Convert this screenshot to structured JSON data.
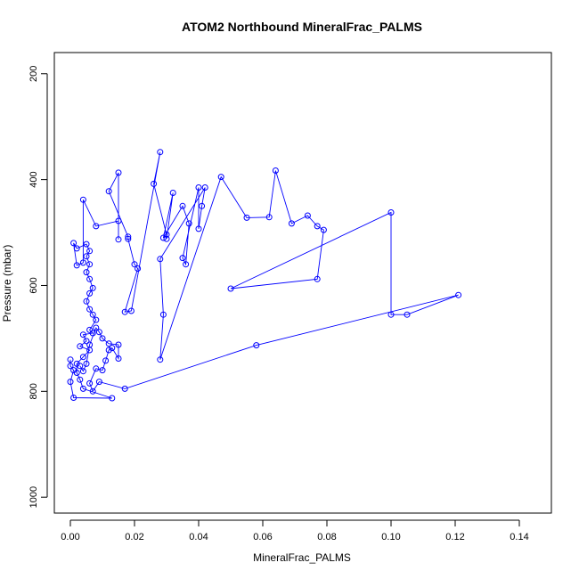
{
  "chart_data": {
    "type": "scatter",
    "title": "ATOM2 Northbound MineralFrac_PALMS",
    "xlabel": "MineralFrac_PALMS",
    "ylabel": "Pressure (mbar)",
    "xlim": [
      -0.005,
      0.15
    ],
    "ylim": [
      160,
      1030
    ],
    "y_reversed": true,
    "xticks": [
      "0.00",
      "0.02",
      "0.04",
      "0.06",
      "0.08",
      "0.10",
      "0.12",
      "0.14"
    ],
    "yticks": [
      "200",
      "400",
      "600",
      "800",
      "1000"
    ],
    "grid": false,
    "series": [
      {
        "color": "#0000ff",
        "marker": "open-circle",
        "connected": true,
        "points": [
          [
            0.0,
            740
          ],
          [
            0.0,
            752
          ],
          [
            0.001,
            760
          ],
          [
            0.0,
            782
          ],
          [
            0.001,
            812
          ],
          [
            0.013,
            813
          ],
          [
            0.004,
            795
          ],
          [
            0.003,
            778
          ],
          [
            0.002,
            765
          ],
          [
            0.002,
            748
          ],
          [
            0.004,
            735
          ],
          [
            0.006,
            722
          ],
          [
            0.003,
            715
          ],
          [
            0.005,
            705
          ],
          [
            0.004,
            693
          ],
          [
            0.007,
            690
          ],
          [
            0.006,
            684
          ],
          [
            0.008,
            665
          ],
          [
            0.007,
            655
          ],
          [
            0.006,
            645
          ],
          [
            0.005,
            630
          ],
          [
            0.006,
            615
          ],
          [
            0.007,
            605
          ],
          [
            0.006,
            588
          ],
          [
            0.005,
            575
          ],
          [
            0.006,
            560
          ],
          [
            0.005,
            545
          ],
          [
            0.006,
            535
          ],
          [
            0.005,
            522
          ],
          [
            0.002,
            530
          ],
          [
            0.001,
            520
          ],
          [
            0.002,
            562
          ],
          [
            0.004,
            557
          ],
          [
            0.004,
            438
          ],
          [
            0.008,
            488
          ],
          [
            0.015,
            478
          ],
          [
            0.015,
            513
          ],
          [
            0.015,
            387
          ],
          [
            0.012,
            422
          ],
          [
            0.018,
            508
          ],
          [
            0.018,
            512
          ],
          [
            0.02,
            560
          ],
          [
            0.021,
            568
          ],
          [
            0.017,
            650
          ],
          [
            0.019,
            648
          ],
          [
            0.028,
            348
          ],
          [
            0.026,
            408
          ],
          [
            0.03,
            504
          ],
          [
            0.03,
            512
          ],
          [
            0.032,
            425
          ],
          [
            0.029,
            510
          ],
          [
            0.035,
            450
          ],
          [
            0.037,
            483
          ],
          [
            0.036,
            560
          ],
          [
            0.035,
            548
          ],
          [
            0.04,
            415
          ],
          [
            0.04,
            493
          ],
          [
            0.041,
            450
          ],
          [
            0.042,
            415
          ],
          [
            0.028,
            550
          ],
          [
            0.029,
            655
          ],
          [
            0.028,
            740
          ],
          [
            0.047,
            395
          ],
          [
            0.055,
            472
          ],
          [
            0.062,
            471
          ],
          [
            0.064,
            383
          ],
          [
            0.069,
            483
          ],
          [
            0.074,
            468
          ],
          [
            0.077,
            488
          ],
          [
            0.079,
            495
          ],
          [
            0.077,
            588
          ],
          [
            0.05,
            606
          ],
          [
            0.1,
            462
          ],
          [
            0.1,
            655
          ],
          [
            0.105,
            655
          ],
          [
            0.121,
            618
          ],
          [
            0.058,
            713
          ],
          [
            0.017,
            795
          ],
          [
            0.009,
            782
          ],
          [
            0.007,
            800
          ],
          [
            0.006,
            785
          ],
          [
            0.008,
            757
          ],
          [
            0.01,
            760
          ],
          [
            0.011,
            742
          ],
          [
            0.012,
            722
          ],
          [
            0.013,
            718
          ],
          [
            0.015,
            738
          ],
          [
            0.015,
            712
          ],
          [
            0.012,
            710
          ],
          [
            0.01,
            700
          ],
          [
            0.009,
            688
          ],
          [
            0.008,
            680
          ],
          [
            0.006,
            712
          ],
          [
            0.005,
            748
          ],
          [
            0.004,
            762
          ],
          [
            0.003,
            752
          ]
        ]
      }
    ]
  }
}
